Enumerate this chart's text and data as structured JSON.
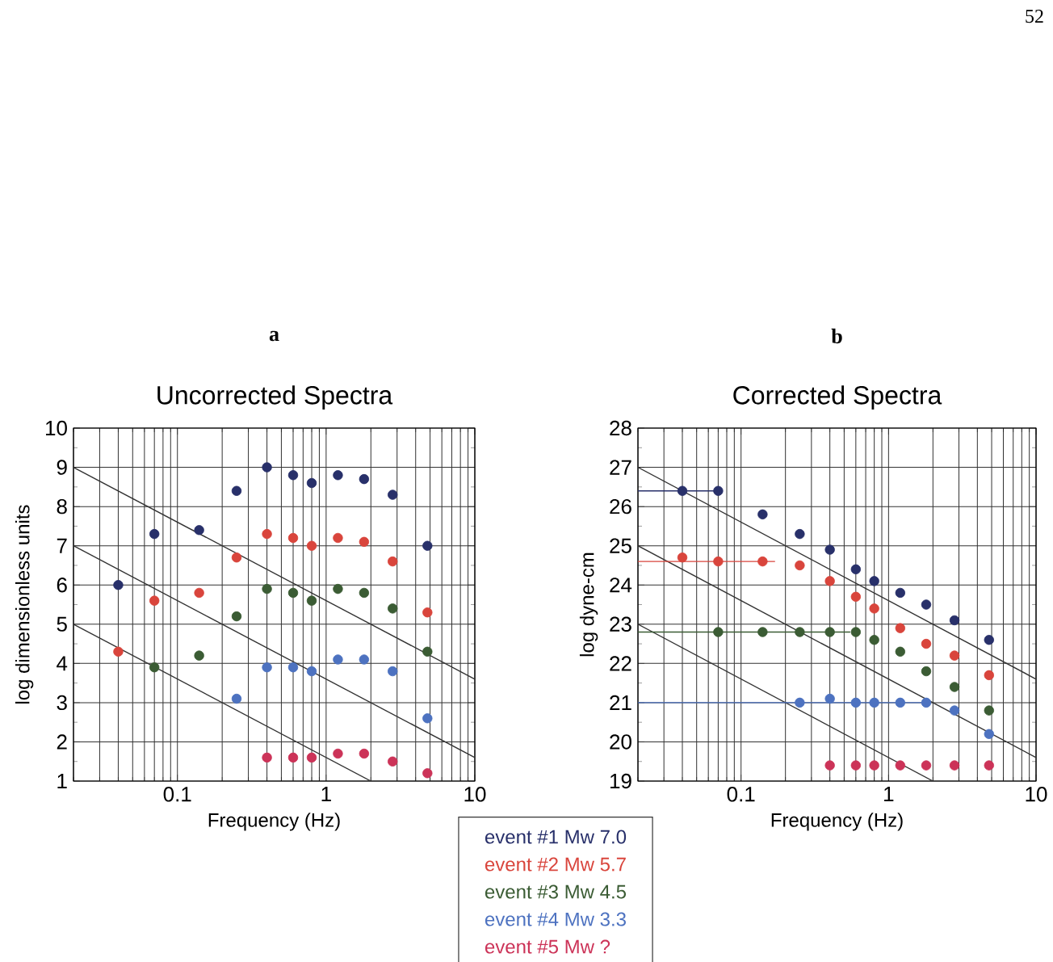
{
  "chart_data": [
    {
      "type": "scatter",
      "title": "Uncorrected Spectra",
      "xlabel": "Frequency (Hz)",
      "ylabel": "log dimensionless units",
      "annotations": [
        "a"
      ],
      "log": "x",
      "xlim": [
        0.02,
        10
      ],
      "ylim": [
        1,
        10
      ],
      "xticks": [
        0.1,
        1,
        10
      ],
      "yticks": [
        1,
        2,
        3,
        4,
        5,
        6,
        7,
        8,
        9,
        10
      ],
      "grid": true,
      "marker": "circle",
      "legend": "bottom right",
      "series": [
        {
          "type": "line",
          "marker": "none",
          "color": "#333333",
          "x": [
            0.02,
            10
          ],
          "values": [
            9,
            3.6
          ]
        },
        {
          "type": "line",
          "marker": "none",
          "color": "#333333",
          "x": [
            0.02,
            10
          ],
          "values": [
            7,
            1.6
          ]
        },
        {
          "type": "line",
          "marker": "none",
          "color": "#333333",
          "x": [
            0.02,
            2
          ],
          "values": [
            5,
            1
          ]
        },
        {
          "name": "event #1  Mw 7.0",
          "color": "#28306a",
          "x": [
            0.04,
            0.07,
            0.14,
            0.25,
            0.4,
            0.6,
            0.8,
            1.2,
            1.8,
            2.8,
            4.8
          ],
          "values": [
            6.0,
            7.3,
            7.4,
            8.4,
            9.0,
            8.8,
            8.6,
            8.8,
            8.7,
            8.3,
            7.0
          ]
        },
        {
          "name": "event #2  Mw 5.7",
          "color": "#d9453c",
          "x": [
            0.04,
            0.07,
            0.14,
            0.25,
            0.4,
            0.6,
            0.8,
            1.2,
            1.8,
            2.8,
            4.8
          ],
          "values": [
            4.3,
            5.6,
            5.8,
            6.7,
            7.3,
            7.2,
            7.0,
            7.2,
            7.1,
            6.6,
            5.3
          ]
        },
        {
          "name": "event #3  Mw 4.5",
          "color": "#3b5c34",
          "x": [
            0.07,
            0.14,
            0.25,
            0.4,
            0.6,
            0.8,
            1.2,
            1.8,
            2.8,
            4.8
          ],
          "values": [
            3.9,
            4.2,
            5.2,
            5.9,
            5.8,
            5.6,
            5.9,
            5.8,
            5.4,
            4.3
          ]
        },
        {
          "name": "event #4  Mw 3.3",
          "color": "#4d72c0",
          "x": [
            0.25,
            0.4,
            0.6,
            0.8,
            1.2,
            1.8,
            2.8,
            4.8
          ],
          "values": [
            3.1,
            3.9,
            3.9,
            3.8,
            4.1,
            4.1,
            3.8,
            2.6
          ]
        },
        {
          "name": "event #5  Mw ?",
          "color": "#cc3358",
          "x": [
            0.4,
            0.6,
            0.8,
            1.2,
            1.8,
            2.8,
            4.8
          ],
          "values": [
            1.6,
            1.6,
            1.6,
            1.7,
            1.7,
            1.5,
            1.2
          ]
        }
      ]
    },
    {
      "type": "scatter",
      "title": "Corrected Spectra",
      "xlabel": "Frequency (Hz)",
      "ylabel": "log dyne-cm",
      "annotations": [
        "b",
        "52"
      ],
      "log": "x",
      "xlim": [
        0.02,
        10
      ],
      "ylim": [
        19,
        28
      ],
      "xticks": [
        0.1,
        1,
        10
      ],
      "yticks": [
        19,
        20,
        21,
        22,
        23,
        24,
        25,
        26,
        27,
        28
      ],
      "grid": true,
      "marker": "circle",
      "series": [
        {
          "type": "line",
          "marker": "none",
          "color": "#333333",
          "x": [
            0.02,
            10
          ],
          "values": [
            27,
            21.6
          ]
        },
        {
          "type": "line",
          "marker": "none",
          "color": "#333333",
          "x": [
            0.02,
            10
          ],
          "values": [
            25,
            19.6
          ]
        },
        {
          "type": "line",
          "marker": "none",
          "color": "#333333",
          "x": [
            0.02,
            2
          ],
          "values": [
            23,
            19
          ]
        },
        {
          "type": "line",
          "marker": "none",
          "color": "#28306a",
          "x": [
            0.02,
            0.07
          ],
          "values": [
            26.4,
            26.4
          ]
        },
        {
          "type": "line",
          "marker": "none",
          "color": "#d9453c",
          "x": [
            0.02,
            0.17
          ],
          "values": [
            24.6,
            24.6
          ]
        },
        {
          "type": "line",
          "marker": "none",
          "color": "#3b5c34",
          "x": [
            0.02,
            0.55
          ],
          "values": [
            22.8,
            22.8
          ]
        },
        {
          "type": "line",
          "marker": "none",
          "color": "#4d72c0",
          "x": [
            0.02,
            1.9
          ],
          "values": [
            21.0,
            21.0
          ]
        },
        {
          "color": "#28306a",
          "x": [
            0.04,
            0.07,
            0.14,
            0.25,
            0.4,
            0.6,
            0.8,
            1.2,
            1.8,
            2.8,
            4.8
          ],
          "values": [
            26.4,
            26.4,
            25.8,
            25.3,
            24.9,
            24.4,
            24.1,
            23.8,
            23.5,
            23.1,
            22.6
          ]
        },
        {
          "color": "#d9453c",
          "x": [
            0.04,
            0.07,
            0.14,
            0.25,
            0.4,
            0.6,
            0.8,
            1.2,
            1.8,
            2.8,
            4.8
          ],
          "values": [
            24.7,
            24.6,
            24.6,
            24.5,
            24.1,
            23.7,
            23.4,
            22.9,
            22.5,
            22.2,
            21.7
          ]
        },
        {
          "color": "#3b5c34",
          "x": [
            0.07,
            0.14,
            0.25,
            0.4,
            0.6,
            0.8,
            1.2,
            1.8,
            2.8,
            4.8
          ],
          "values": [
            22.8,
            22.8,
            22.8,
            22.8,
            22.8,
            22.6,
            22.3,
            21.8,
            21.4,
            20.8
          ]
        },
        {
          "color": "#4d72c0",
          "x": [
            0.25,
            0.4,
            0.6,
            0.8,
            1.2,
            1.8,
            2.8,
            4.8
          ],
          "values": [
            21.0,
            21.1,
            21.0,
            21.0,
            21.0,
            21.0,
            20.8,
            20.2
          ]
        },
        {
          "color": "#cc3358",
          "x": [
            0.4,
            0.6,
            0.8,
            1.2,
            1.8,
            2.8,
            4.8
          ],
          "values": [
            19.4,
            19.4,
            19.4,
            19.4,
            19.4,
            19.4,
            19.4
          ]
        }
      ]
    }
  ]
}
